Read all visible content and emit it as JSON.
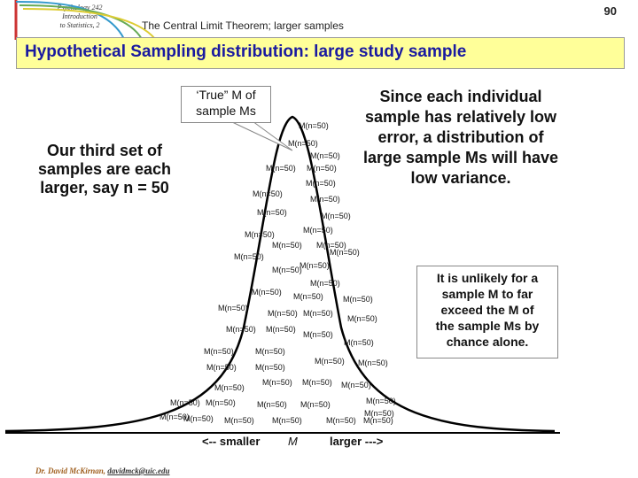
{
  "header": {
    "course_lines": [
      "Psychology 242",
      "Introduction",
      "to Statistics, 2"
    ],
    "lecture": "The Central Limit Theorem; larger samples",
    "page_number": "90"
  },
  "title": "Hypothetical Sampling distribution: large study sample",
  "left_text": [
    "Our third set of",
    "samples are each",
    "larger, say n = 50"
  ],
  "callout": [
    "‘True” M of",
    "sample Ms"
  ],
  "right_text": [
    "Since each individual",
    "sample has relatively low",
    "error, a distribution of",
    "large sample Ms will have",
    "low variance."
  ],
  "box_text": [
    "It is unlikely for a",
    "sample M to far",
    "exceed the M of",
    "the sample Ms by",
    "chance alone."
  ],
  "sample_label": "M(n=50)",
  "axis": {
    "smaller": "<-- smaller",
    "mean": "M",
    "larger": "larger --->"
  },
  "footer": {
    "author": "Dr. David McKirnan,",
    "email": "davidmck@uic.edu"
  },
  "colors": {
    "title": "#1a1aa0",
    "banner": "#ffff99",
    "curve": "#000000"
  }
}
